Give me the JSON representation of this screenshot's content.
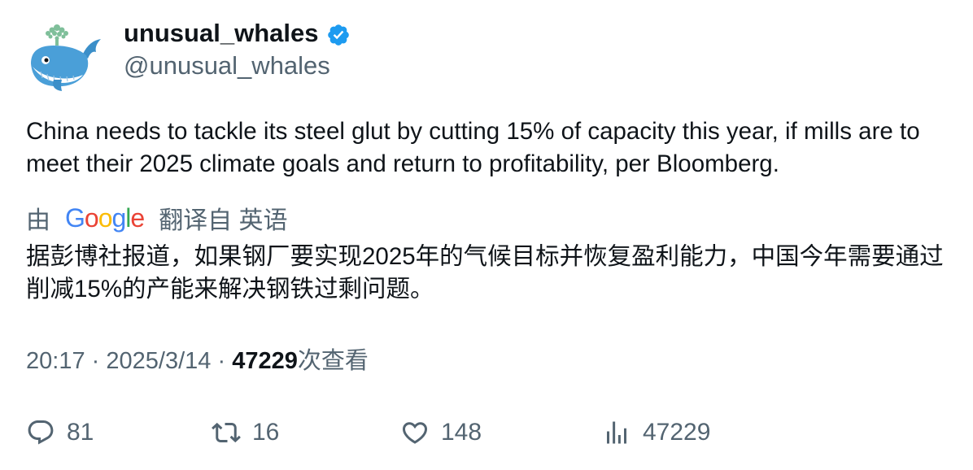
{
  "author": {
    "display_name": "unusual_whales",
    "handle": "@unusual_whales",
    "avatar_icon": "whale-avatar-icon",
    "verified_icon": "verified-badge-icon"
  },
  "tweet": {
    "text": "China needs to tackle its steel glut by cutting 15% of capacity this year, if mills are to meet their 2025 climate goals and return to profitability, per Bloomberg."
  },
  "translation": {
    "prefix": "由",
    "provider_letters": [
      "G",
      "o",
      "o",
      "g",
      "l",
      "e"
    ],
    "suffix": "翻译自 英语",
    "text": "据彭博社报道，如果钢厂要实现2025年的气候目标并恢复盈利能力，中国今年需要通过削减15%的产能来解决钢铁过剩问题。"
  },
  "meta": {
    "time": "20:17",
    "separator": "·",
    "date": "2025/3/14",
    "views_count": "47229",
    "views_label": "次查看"
  },
  "actions": {
    "replies": "81",
    "retweets": "16",
    "likes": "148",
    "views": "47229"
  },
  "colors": {
    "text_primary": "#0f1419",
    "text_secondary": "#536471",
    "verified_blue": "#1d9bf0"
  }
}
